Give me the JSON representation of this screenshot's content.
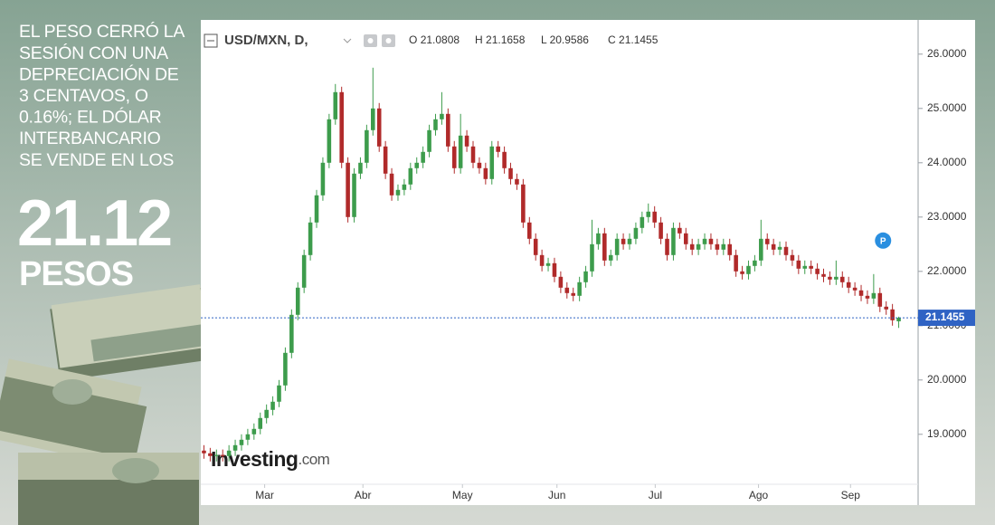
{
  "chart_data": {
    "type": "candlestick",
    "title": "USD/MXN, D,",
    "ohlc_labels": [
      "O",
      "H",
      "L",
      "C"
    ],
    "badge": "P",
    "watermark": {
      "brand": "Investing",
      "suffix": ".com"
    },
    "up_color": "#3d9c4c",
    "down_color": "#b02a2a",
    "price_line_color": "#2f63c4",
    "xlim": [
      -0.5,
      114.1
    ],
    "xticks": [
      {
        "value": 9.7,
        "label": "Mar"
      },
      {
        "value": 25.4,
        "label": "Abr"
      },
      {
        "value": 41.3,
        "label": "May"
      },
      {
        "value": 56.4,
        "label": "Jun"
      },
      {
        "value": 72.1,
        "label": "Jul"
      },
      {
        "value": 88.6,
        "label": "Ago"
      },
      {
        "value": 103.3,
        "label": "Sep"
      }
    ],
    "ylim": [
      18.08,
      26.63
    ],
    "yticks": [
      {
        "value": 19,
        "label": "19.0000"
      },
      {
        "value": 20,
        "label": "20.0000"
      },
      {
        "value": 21,
        "label": "21.0000"
      },
      {
        "value": 22,
        "label": "22.0000"
      },
      {
        "value": 23,
        "label": "23.0000"
      },
      {
        "value": 24,
        "label": "24.0000"
      },
      {
        "value": 25,
        "label": "25.0000"
      },
      {
        "value": 26,
        "label": "26.0000"
      }
    ],
    "open": [
      18.7,
      18.65,
      18.6,
      18.62,
      18.6,
      18.7,
      18.8,
      18.9,
      19.0,
      19.1,
      19.3,
      19.45,
      19.6,
      19.9,
      20.5,
      21.2,
      21.7,
      22.3,
      22.9,
      23.4,
      24.0,
      24.8,
      25.3,
      24.0,
      23.0,
      23.8,
      24.0,
      24.6,
      25.0,
      24.3,
      23.8,
      23.4,
      23.5,
      23.6,
      23.9,
      24.0,
      24.2,
      24.6,
      24.8,
      24.9,
      24.3,
      23.9,
      24.5,
      24.3,
      24.0,
      23.9,
      23.7,
      24.3,
      24.2,
      23.9,
      23.7,
      23.6,
      22.9,
      22.6,
      22.3,
      22.1,
      22.15,
      21.9,
      21.7,
      21.6,
      21.55,
      21.8,
      22.0,
      22.5,
      22.7,
      22.2,
      22.3,
      22.6,
      22.5,
      22.6,
      22.8,
      23.0,
      23.1,
      22.9,
      22.6,
      22.3,
      22.8,
      22.7,
      22.5,
      22.4,
      22.5,
      22.6,
      22.5,
      22.4,
      22.5,
      22.3,
      22.0,
      21.95,
      22.1,
      22.2,
      22.6,
      22.5,
      22.4,
      22.45,
      22.3,
      22.2,
      22.05,
      22.1,
      22.05,
      21.95,
      21.9,
      21.85,
      21.9,
      21.8,
      21.7,
      21.65,
      21.55,
      21.5,
      21.6,
      21.35,
      21.3,
      21.0808
    ],
    "high": [
      18.8,
      18.75,
      18.72,
      18.72,
      18.8,
      18.9,
      19.0,
      19.1,
      19.2,
      19.4,
      19.55,
      19.7,
      20.0,
      20.6,
      21.3,
      21.8,
      22.4,
      23.0,
      23.5,
      24.1,
      24.9,
      25.45,
      25.4,
      24.1,
      23.9,
      24.1,
      24.7,
      25.75,
      25.1,
      24.4,
      23.9,
      23.6,
      23.7,
      24.0,
      24.1,
      24.3,
      24.7,
      24.9,
      25.3,
      25.0,
      24.4,
      24.9,
      24.6,
      24.4,
      24.1,
      24.0,
      24.4,
      24.4,
      24.3,
      24.0,
      23.8,
      23.7,
      23.0,
      22.7,
      22.4,
      22.25,
      22.25,
      22.0,
      21.8,
      21.7,
      21.9,
      22.1,
      22.95,
      22.8,
      22.8,
      22.4,
      22.7,
      22.7,
      22.7,
      22.9,
      23.1,
      23.25,
      23.2,
      23.0,
      22.7,
      22.9,
      22.9,
      22.8,
      22.6,
      22.6,
      22.7,
      22.7,
      22.6,
      22.6,
      22.6,
      22.4,
      22.1,
      22.2,
      22.3,
      22.95,
      22.7,
      22.6,
      22.55,
      22.55,
      22.4,
      22.3,
      22.2,
      22.2,
      22.15,
      22.05,
      22.0,
      22.2,
      22.0,
      21.9,
      21.8,
      21.75,
      21.65,
      21.95,
      21.7,
      21.45,
      21.4,
      21.1658
    ],
    "low": [
      18.55,
      18.5,
      18.5,
      18.5,
      18.5,
      18.6,
      18.7,
      18.8,
      18.9,
      19.0,
      19.2,
      19.35,
      19.5,
      19.8,
      20.4,
      21.1,
      21.6,
      22.2,
      22.8,
      23.3,
      23.9,
      24.7,
      23.9,
      22.9,
      22.9,
      23.7,
      23.9,
      24.5,
      24.2,
      23.7,
      23.3,
      23.3,
      23.4,
      23.5,
      23.8,
      23.9,
      24.1,
      24.5,
      24.7,
      24.2,
      23.8,
      23.8,
      24.2,
      23.9,
      23.8,
      23.6,
      23.6,
      24.1,
      23.8,
      23.6,
      23.5,
      22.8,
      22.5,
      22.2,
      22.0,
      22.0,
      21.8,
      21.6,
      21.5,
      21.45,
      21.45,
      21.7,
      21.9,
      22.4,
      22.1,
      22.1,
      22.2,
      22.4,
      22.4,
      22.5,
      22.7,
      22.9,
      22.8,
      22.5,
      22.2,
      22.2,
      22.6,
      22.4,
      22.3,
      22.3,
      22.4,
      22.4,
      22.3,
      22.3,
      22.2,
      21.9,
      21.85,
      21.85,
      22.0,
      22.1,
      22.4,
      22.3,
      22.3,
      22.2,
      22.1,
      21.95,
      21.95,
      21.95,
      21.85,
      21.8,
      21.75,
      21.75,
      21.7,
      21.6,
      21.55,
      21.45,
      21.4,
      21.4,
      21.25,
      21.2,
      21.0,
      20.9586
    ],
    "close": [
      18.65,
      18.6,
      18.62,
      18.6,
      18.7,
      18.8,
      18.9,
      19.0,
      19.1,
      19.3,
      19.45,
      19.6,
      19.9,
      20.5,
      21.2,
      21.7,
      22.3,
      22.9,
      23.4,
      24.0,
      24.8,
      25.3,
      24.0,
      23.0,
      23.8,
      24.0,
      24.6,
      25.0,
      24.3,
      23.8,
      23.4,
      23.5,
      23.6,
      23.9,
      24.0,
      24.2,
      24.6,
      24.8,
      24.9,
      24.3,
      23.9,
      24.5,
      24.3,
      24.0,
      23.9,
      23.7,
      24.3,
      24.2,
      23.9,
      23.7,
      23.6,
      22.9,
      22.6,
      22.3,
      22.1,
      22.15,
      21.9,
      21.7,
      21.6,
      21.55,
      21.8,
      22.0,
      22.5,
      22.7,
      22.2,
      22.3,
      22.6,
      22.5,
      22.6,
      22.8,
      23.0,
      23.1,
      22.9,
      22.6,
      22.3,
      22.8,
      22.7,
      22.5,
      22.4,
      22.5,
      22.6,
      22.5,
      22.4,
      22.5,
      22.3,
      22.0,
      21.95,
      22.1,
      22.2,
      22.6,
      22.5,
      22.4,
      22.45,
      22.3,
      22.2,
      22.05,
      22.1,
      22.05,
      21.95,
      21.9,
      21.85,
      21.9,
      21.8,
      21.7,
      21.65,
      21.55,
      21.5,
      21.6,
      21.35,
      21.3,
      21.1,
      21.1455
    ]
  },
  "overlay": {
    "lines": [
      "EL PESO CERRÓ LA",
      "SESIÓN CON UNA",
      "DEPRECIACIÓN DE",
      "3 CENTAVOS, O",
      "0.16%; EL DÓLAR",
      "INTERBANCARIO",
      "SE VENDE EN LOS"
    ],
    "price": "21.12",
    "unit": "PESOS"
  }
}
